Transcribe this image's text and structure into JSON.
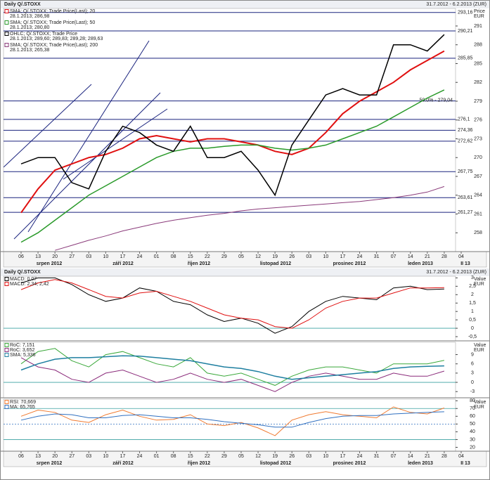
{
  "chart_data": [
    {
      "type": "line",
      "title": "Daily Q/.STOXX",
      "date_range": "31.7.2012 - 6.2.2013 (ZUR)",
      "y_label": "Price",
      "y_unit": "EUR",
      "categories": [
        "06",
        "13",
        "20",
        "27",
        "03",
        "10",
        "17",
        "24",
        "01",
        "08",
        "15",
        "22",
        "29",
        "05",
        "12",
        "19",
        "26",
        "03",
        "10",
        "17",
        "24",
        "31",
        "07",
        "14",
        "21",
        "28",
        "04"
      ],
      "month_labels": [
        "srpen 2012",
        "září 2012",
        "říjen 2012",
        "listopad 2012",
        "prosinec 2012",
        "leden 2013",
        "II 13"
      ],
      "ylim": [
        255,
        293.8
      ],
      "yticks": [
        258,
        261,
        264,
        267,
        270,
        273,
        276,
        279,
        282,
        285,
        288,
        291
      ],
      "levels": [
        {
          "value": 293.16,
          "label": "293,16"
        },
        {
          "value": 290.21,
          "label": "290,21"
        },
        {
          "value": 285.85,
          "label": "285,85"
        },
        {
          "value": 276.1,
          "label": "276,1"
        },
        {
          "value": 274.36,
          "label": "274,36"
        },
        {
          "value": 272.62,
          "label": "272,62"
        },
        {
          "value": 267.75,
          "label": "267,75"
        },
        {
          "value": 263.61,
          "label": "263,61"
        },
        {
          "value": 261.27,
          "label": "261,27"
        }
      ],
      "annotations": [
        {
          "value": 279.04,
          "label": "50.0% - 279,04"
        }
      ],
      "level_color": "#1a237e",
      "series": [
        {
          "name": "SMA; Q/.STOXX; Trade Price(Last); 20",
          "detail": "28.1.2013; 286,98",
          "color": "#e01010",
          "width": 2,
          "values": [
            261.2,
            265,
            268,
            269,
            270,
            270.5,
            271.5,
            273,
            273.5,
            273,
            272.5,
            273,
            273,
            272.5,
            272,
            271,
            270.5,
            271.5,
            274,
            277,
            279,
            280.5,
            282,
            284,
            285.5,
            287,
            null
          ]
        },
        {
          "name": "SMA; Q/.STOXX; Trade Price(Last); 50",
          "detail": "28.1.2013; 280,80",
          "color": "#2a9a2a",
          "width": 1.5,
          "values": [
            256.5,
            258,
            260,
            262,
            264,
            265.5,
            267,
            268.5,
            270,
            271,
            271.5,
            271.5,
            271.8,
            272,
            272,
            271.5,
            271.2,
            271.5,
            272,
            273,
            274,
            275,
            276.5,
            278,
            279.5,
            280.8,
            null
          ]
        },
        {
          "name": "OHLC; Q/.STOXX; Trade Price",
          "detail": "28.1.2013; 289,60; 289,83; 289,28; 289,63",
          "color": "#000000",
          "width": 1.5,
          "values": [
            269,
            270,
            270,
            266,
            265,
            271,
            275,
            274,
            272,
            271,
            275,
            270,
            270,
            271,
            268,
            264,
            272,
            276,
            280,
            281,
            280,
            280,
            288,
            288,
            287,
            289.63,
            null
          ]
        },
        {
          "name": "SMA; Q/.STOXX; Trade Price(Last); 200",
          "detail": "28.1.2013; 265,38",
          "color": "#8a3a7a",
          "width": 1,
          "values": [
            null,
            null,
            255.2,
            256,
            256.8,
            257.5,
            258.3,
            258.9,
            259.5,
            260,
            260.4,
            260.8,
            261.1,
            261.5,
            261.8,
            262,
            262.2,
            262.4,
            262.6,
            262.8,
            263,
            263.3,
            263.6,
            264,
            264.5,
            265.38,
            null
          ]
        }
      ]
    },
    {
      "type": "line",
      "title": "Daily Q/.STOXX",
      "date_range": "31.7.2012 - 6.2.2013 (ZUR)",
      "y_label": "Value",
      "y_unit": "EUR",
      "ylim": [
        -0.75,
        3.1
      ],
      "yticks": [
        3,
        {
          "value": 2.5,
          "label": "2,5"
        },
        2,
        {
          "value": 1.5,
          "label": "1,5"
        },
        1,
        {
          "value": 0.5,
          "label": "0,5"
        },
        0,
        {
          "value": -0.5,
          "label": "-0,5"
        }
      ],
      "hlines": [
        0
      ],
      "series": [
        {
          "name": "MACD: 0,07",
          "color": "#000000",
          "width": 1,
          "values": [
            2.7,
            3.0,
            3.0,
            2.6,
            2.0,
            1.6,
            1.8,
            2.4,
            2.2,
            1.6,
            1.4,
            0.8,
            0.4,
            0.6,
            0.3,
            -0.3,
            0.1,
            1.0,
            1.6,
            1.9,
            1.8,
            1.7,
            2.4,
            2.5,
            2.3,
            2.34,
            null
          ]
        },
        {
          "name": "MACD: 2,34; 2,42",
          "color": "#e01010",
          "width": 1,
          "values": [
            2.3,
            2.7,
            2.9,
            2.7,
            2.3,
            1.9,
            1.8,
            2.1,
            2.2,
            1.9,
            1.6,
            1.2,
            0.8,
            0.6,
            0.5,
            0.1,
            0.0,
            0.5,
            1.2,
            1.6,
            1.8,
            1.8,
            2.1,
            2.4,
            2.4,
            2.42,
            null
          ]
        }
      ]
    },
    {
      "type": "line",
      "y_label": "Value",
      "y_unit": "EUR",
      "ylim": [
        -5,
        13
      ],
      "yticks": [
        9,
        6,
        3,
        0,
        -3
      ],
      "hlines": [
        0
      ],
      "series": [
        {
          "name": "RoC: 7,151",
          "color": "#3aa83a",
          "width": 1,
          "values": [
            6,
            10,
            11,
            7,
            5,
            9,
            10,
            8,
            6,
            5,
            8,
            3,
            2,
            3,
            1,
            -1,
            2,
            4,
            5,
            5,
            4,
            3,
            6,
            6,
            6,
            7.15,
            null
          ]
        },
        {
          "name": "RoC: 3,652",
          "color": "#8a2a7a",
          "width": 1,
          "values": [
            8,
            5,
            4,
            1,
            0,
            3,
            4,
            2,
            0,
            1,
            3,
            1,
            0,
            1,
            -1,
            -3,
            0,
            2,
            3,
            2,
            1,
            1,
            3,
            2,
            2,
            3.65,
            null
          ]
        },
        {
          "name": "SMA: 5,336",
          "color": "#1e7fa0",
          "width": 1.5,
          "values": [
            4,
            6,
            7.5,
            8,
            8,
            8.3,
            8.6,
            8.5,
            8,
            7.5,
            7,
            6,
            5,
            4.5,
            3.5,
            2,
            1,
            1.5,
            2,
            2.5,
            3,
            3.5,
            4.5,
            5,
            5.2,
            5.34,
            null
          ]
        }
      ]
    },
    {
      "type": "line",
      "y_label": "Value",
      "y_unit": "EUR",
      "ylim": [
        15,
        82
      ],
      "yticks": [
        20,
        30,
        40,
        50,
        60,
        70,
        80
      ],
      "hlines": [
        70,
        50,
        30
      ],
      "series": [
        {
          "name": "RSI: 70,669",
          "color": "#f07a30",
          "width": 1,
          "values": [
            60,
            68,
            65,
            55,
            52,
            62,
            68,
            60,
            55,
            56,
            62,
            50,
            48,
            52,
            45,
            35,
            55,
            62,
            66,
            62,
            60,
            58,
            72,
            65,
            63,
            70.67,
            null
          ]
        },
        {
          "name": "MA: 65,765",
          "color": "#3070c0",
          "width": 1,
          "values": [
            55,
            60,
            63,
            62,
            58,
            58,
            61,
            62,
            60,
            58,
            58,
            56,
            53,
            51,
            49,
            46,
            46,
            52,
            57,
            60,
            61,
            61,
            63,
            64,
            65,
            65.77,
            null
          ]
        }
      ]
    }
  ]
}
